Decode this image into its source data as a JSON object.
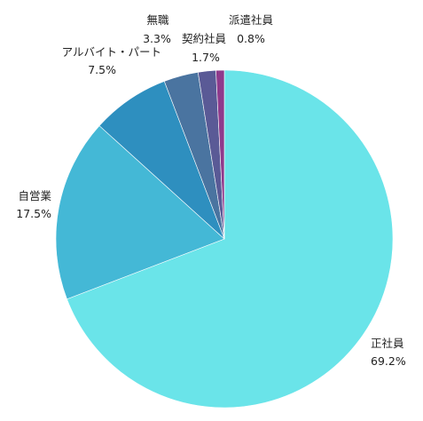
{
  "chart_data": {
    "type": "pie",
    "start_angle_deg": 90,
    "direction": "clockwise",
    "slices": [
      {
        "name": "正社員",
        "value": 69.2,
        "label": "69.2%",
        "color": "#6ae4e9"
      },
      {
        "name": "自営業",
        "value": 17.5,
        "label": "17.5%",
        "color": "#44b8d6"
      },
      {
        "name": "アルバイト・パート",
        "value": 7.5,
        "label": "7.5%",
        "color": "#2e8fbf"
      },
      {
        "name": "無職",
        "value": 3.3,
        "label": "3.3%",
        "color": "#4a74a0"
      },
      {
        "name": "契約社員",
        "value": 1.7,
        "label": "1.7%",
        "color": "#5a5a96"
      },
      {
        "name": "派遣社員",
        "value": 0.8,
        "label": "0.8%",
        "color": "#8e3a8c"
      }
    ]
  }
}
